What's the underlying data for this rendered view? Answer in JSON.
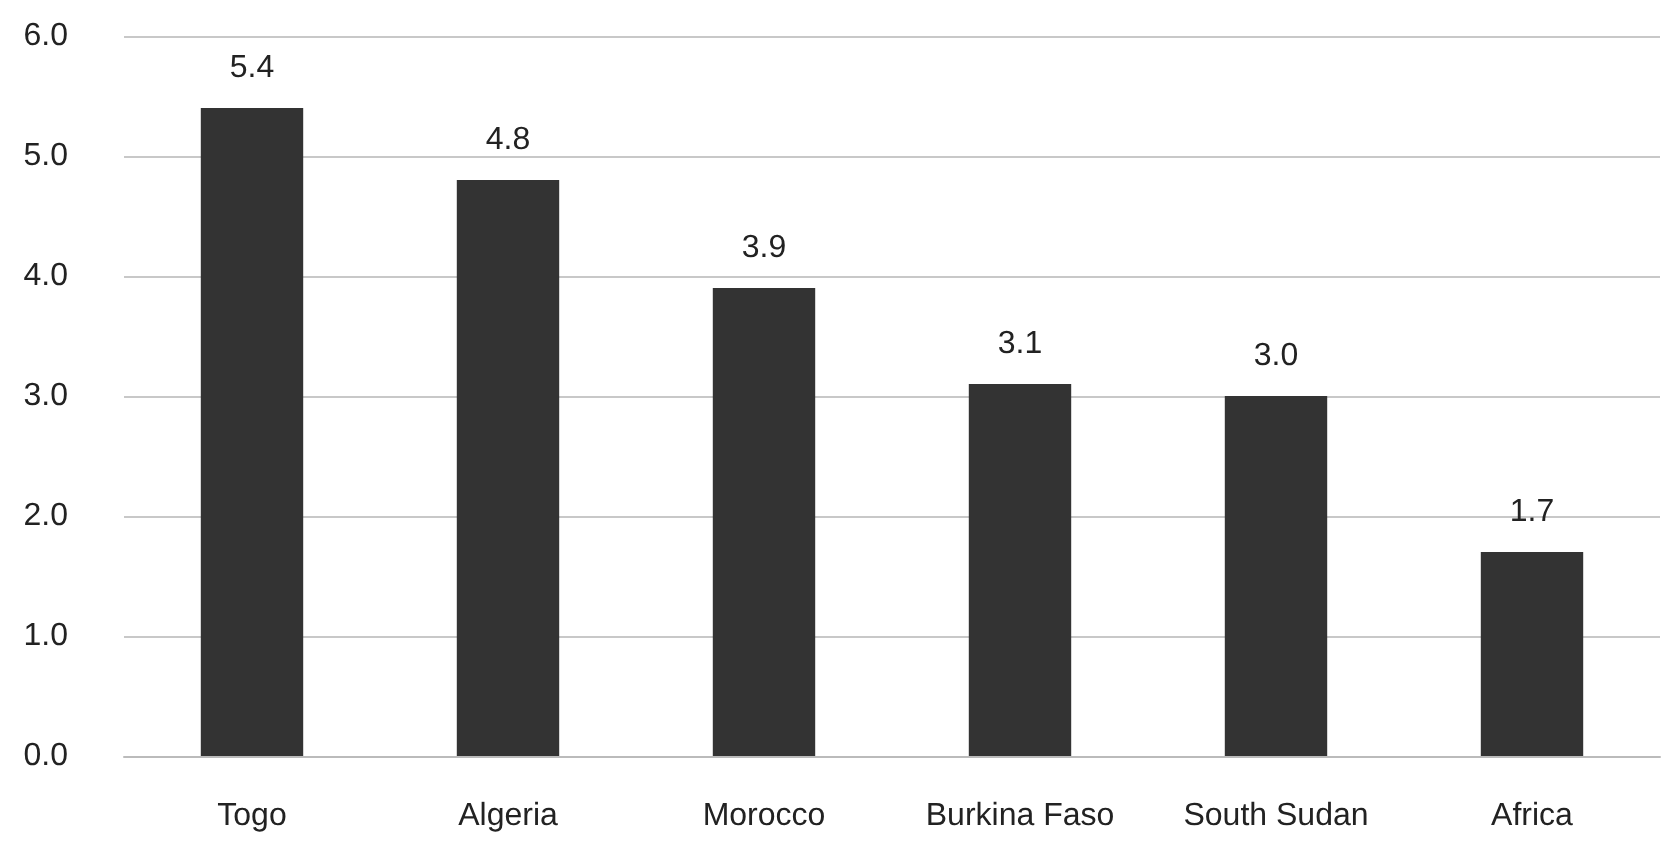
{
  "chart_data": {
    "type": "bar",
    "categories": [
      "Togo",
      "Algeria",
      "Morocco",
      "Burkina Faso",
      "South Sudan",
      "Africa"
    ],
    "values": [
      5.4,
      4.8,
      3.9,
      3.1,
      3.0,
      1.7
    ],
    "value_labels": [
      "5.4",
      "4.8",
      "3.9",
      "3.1",
      "3.0",
      "1.7"
    ],
    "color": "#333333",
    "ylim": [
      0,
      6
    ],
    "yticks": [
      {
        "value": 0,
        "label": "0.0"
      },
      {
        "value": 1,
        "label": "1.0"
      },
      {
        "value": 2,
        "label": "2.0"
      },
      {
        "value": 3,
        "label": "3.0"
      },
      {
        "value": 4,
        "label": "4.0"
      },
      {
        "value": 5,
        "label": "5.0"
      },
      {
        "value": 6,
        "label": "6.0"
      }
    ],
    "grid": "y"
  }
}
